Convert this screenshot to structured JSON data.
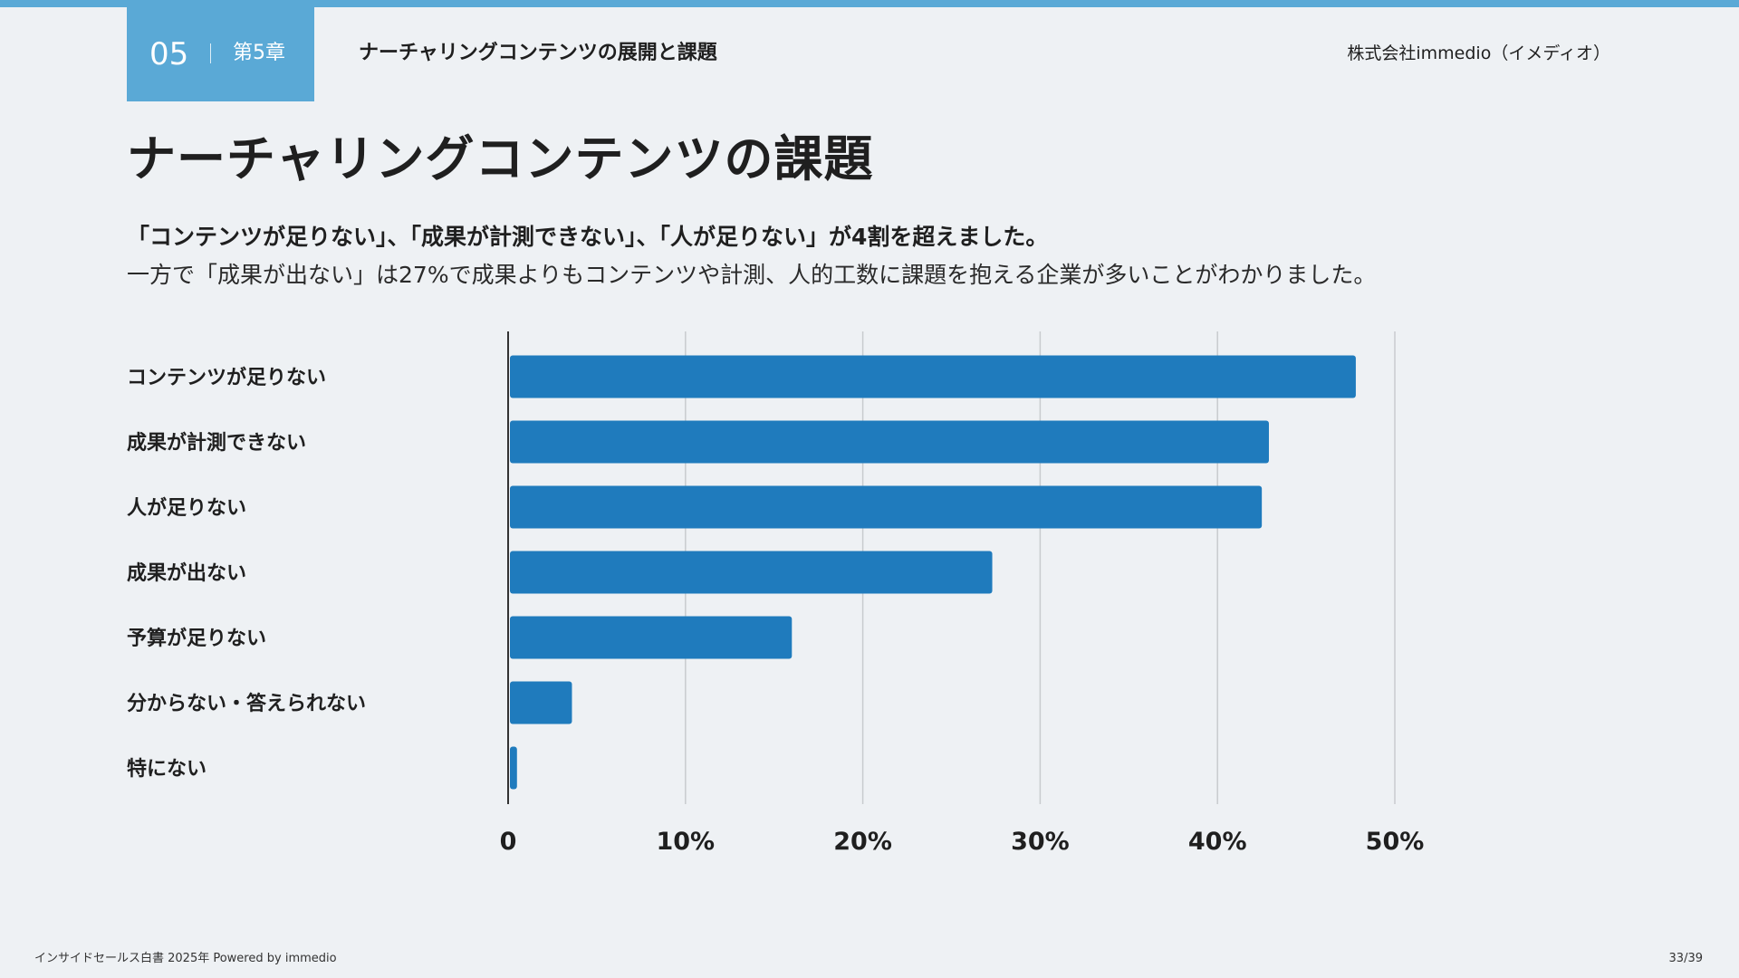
{
  "header": {
    "chapter_number": "05",
    "chapter_label": "第5章",
    "section_title": "ナーチャリングコンテンツの展開と課題",
    "company": "株式会社immedio（イメディオ）"
  },
  "title": "ナーチャリングコンテンツの課題",
  "summary": {
    "line1": "「コンテンツが足りない」、「成果が計測できない」、「人が足りない」が4割を超えました。",
    "line2": "一方で「成果が出ない」は27%で成果よりもコンテンツや計測、人的工数に課題を抱える企業が多いことがわかりました。"
  },
  "colors": {
    "accent": "#5aa9d6",
    "bar": "#1f7bbd",
    "grid": "#c8cbce",
    "axis": "#333333"
  },
  "chart_data": {
    "type": "bar",
    "orientation": "horizontal",
    "categories": [
      "コンテンツが足りない",
      "成果が計測できない",
      "人が足りない",
      "成果が出ない",
      "予算が足りない",
      "分からない・答えられない",
      "特にない"
    ],
    "values": [
      47.8,
      42.9,
      42.5,
      27.3,
      16.0,
      3.6,
      0.5
    ],
    "unit": "%",
    "xlim": [
      0,
      50
    ],
    "xticks": [
      0,
      10,
      20,
      30,
      40,
      50
    ],
    "xtick_labels": [
      "0",
      "10%",
      "20%",
      "30%",
      "40%",
      "50%"
    ],
    "grid": true,
    "title": "",
    "xlabel": "",
    "ylabel": ""
  },
  "footer": {
    "source": "インサイドセールス白書 2025年 Powered by immedio",
    "page": "33/39"
  }
}
